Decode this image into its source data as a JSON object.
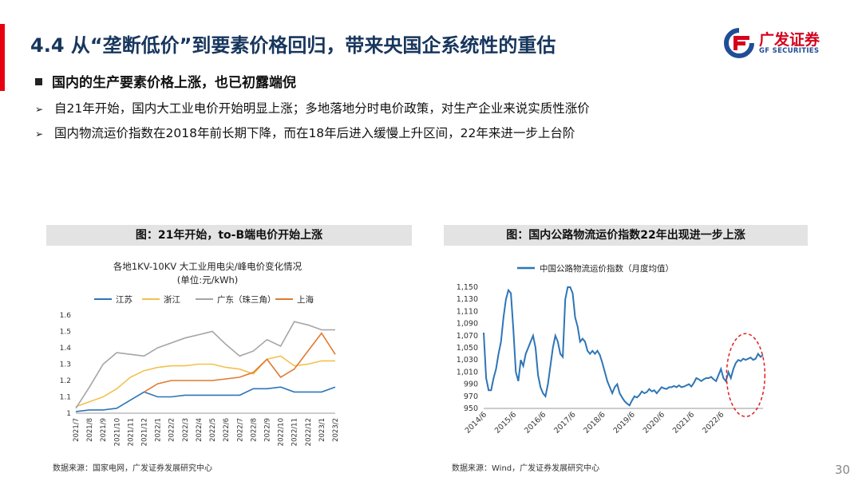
{
  "slide": {
    "title": "4.4 从“垄断低价”到要素价格回归，带来央国企系统性的重估",
    "subhead": "国内的生产要素价格上涨，也已初露端倪",
    "bullets": [
      "自21年开始，国内大工业电价开始明显上涨；多地落地分时电价政策，对生产企业来说实质性涨价",
      "国内物流运价指数在2018年前长期下降，而在18年后进入缓慢上升区间，22年来进一步上台阶"
    ],
    "page_number": "30"
  },
  "logo": {
    "cn": "广发证券",
    "en": "GF SECURITIES",
    "color_red": "#d6001c",
    "color_blue": "#1f4e96"
  },
  "figure1": {
    "caption": "图：21年开始，to-B端电价开始上涨",
    "source": "数据来源：国家电网，广发证券发展研究中心"
  },
  "figure2": {
    "caption": "图：国内公路物流运价指数22年出现进一步上涨",
    "source": "数据来源：Wind，广发证券发展研究中心"
  },
  "chart_data": [
    {
      "type": "line",
      "title": "各地1KV-10KV 大工业用电尖/峰电价变化情况",
      "subtitle": "(单位:元/kWh)",
      "categories": [
        "2021/7",
        "2021/8",
        "2021/9",
        "2021/10",
        "2021/11",
        "2021/12",
        "2022/1",
        "2022/2",
        "2022/3",
        "2022/4",
        "2022/5",
        "2022/6",
        "2022/7",
        "2022/8",
        "2022/9",
        "2022/10",
        "2022/11",
        "2022/12",
        "2023/1",
        "2023/2"
      ],
      "ylim": [
        1,
        1.6
      ],
      "yticks": [
        "1",
        "1.1",
        "1.2",
        "1.3",
        "1.4",
        "1.5",
        "1.6"
      ],
      "legend_position": "top",
      "series": [
        {
          "name": "江苏",
          "color": "#2e75b6",
          "values": [
            1.01,
            1.02,
            1.02,
            1.03,
            1.08,
            1.13,
            1.1,
            1.1,
            1.11,
            1.11,
            1.11,
            1.11,
            1.11,
            1.15,
            1.15,
            1.16,
            1.13,
            1.13,
            1.13,
            1.16
          ]
        },
        {
          "name": "浙江",
          "color": "#f2c14e",
          "values": [
            1.04,
            1.07,
            1.1,
            1.15,
            1.22,
            1.26,
            1.28,
            1.29,
            1.29,
            1.3,
            1.3,
            1.28,
            1.27,
            1.24,
            1.33,
            1.35,
            1.29,
            1.3,
            1.32,
            1.32
          ]
        },
        {
          "name": "广东（珠三角）",
          "color": "#a5a5a5",
          "values": [
            1.03,
            1.16,
            1.3,
            1.37,
            1.36,
            1.35,
            1.4,
            1.43,
            1.46,
            1.48,
            1.5,
            1.42,
            1.35,
            1.38,
            1.45,
            1.41,
            1.56,
            1.54,
            1.51,
            1.51
          ]
        },
        {
          "name": "上海",
          "color": "#e07a2f",
          "values": [
            null,
            null,
            null,
            null,
            null,
            1.13,
            1.18,
            1.2,
            1.2,
            1.2,
            1.2,
            1.21,
            1.22,
            1.25,
            1.33,
            1.22,
            1.27,
            1.38,
            1.49,
            1.36
          ]
        }
      ]
    },
    {
      "type": "line",
      "title": "",
      "legend": "中国公路物流运价指数（月度均值）",
      "ylim": [
        950,
        1150
      ],
      "yticks": [
        "950",
        "970",
        "990",
        "1,010",
        "1,030",
        "1,050",
        "1,070",
        "1,090",
        "1,110",
        "1,130",
        "1,150"
      ],
      "xticks": [
        "2014/6",
        "2015/6",
        "2016/6",
        "2017/6",
        "2018/6",
        "2019/6",
        "2020/6",
        "2021/6",
        "2022/6"
      ],
      "x_start": "2014/6",
      "annotation": "red dashed ellipse highlighting 2022 rise",
      "series": [
        {
          "name": "中国公路物流运价指数（月度均值）",
          "color": "#2e75b6",
          "values": [
            1075,
            1000,
            980,
            980,
            1000,
            1015,
            1040,
            1060,
            1100,
            1130,
            1145,
            1140,
            1080,
            1010,
            995,
            1030,
            1020,
            1040,
            1050,
            1060,
            1070,
            1050,
            1005,
            985,
            975,
            970,
            990,
            1020,
            1050,
            1070,
            1060,
            1040,
            1035,
            1130,
            1160,
            1165,
            1140,
            1100,
            1085,
            1060,
            1065,
            1060,
            1045,
            1040,
            1045,
            1040,
            1045,
            1038,
            1025,
            1010,
            995,
            985,
            975,
            985,
            990,
            975,
            968,
            962,
            958,
            955,
            963,
            970,
            968,
            972,
            978,
            975,
            977,
            982,
            978,
            980,
            975,
            980,
            985,
            983,
            982,
            985,
            985,
            987,
            985,
            988,
            985,
            986,
            988,
            990,
            986,
            992,
            1000,
            998,
            995,
            998,
            1000,
            1000,
            1002,
            998,
            995,
            1005,
            1015,
            1000,
            995,
            1010,
            1000,
            1015,
            1025,
            1030,
            1028,
            1032,
            1030,
            1032,
            1034,
            1030,
            1032,
            1040,
            1035,
            1038
          ]
        }
      ]
    }
  ]
}
